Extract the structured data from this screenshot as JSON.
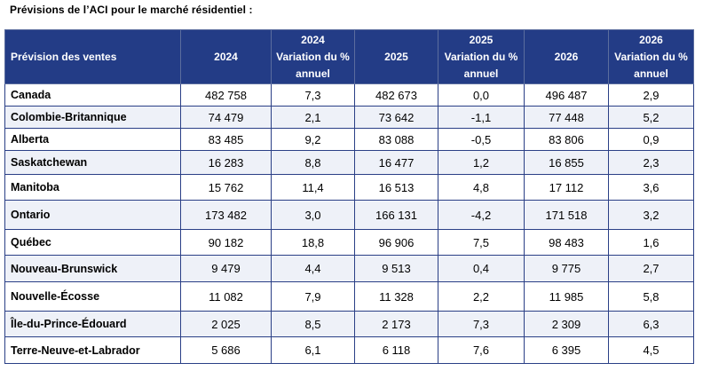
{
  "caption": "Prévisions de l’ACI pour le marché résidentiel :",
  "headers": {
    "province": "Prévision des ventes",
    "y2024": "2024",
    "var2024_l1": "2024",
    "var2024_l2": "Variation du %",
    "var2024_l3": "annuel",
    "y2025": "2025",
    "var2025_l1": "2025",
    "var2025_l2": "Variation du %",
    "var2025_l3": "annuel",
    "y2026": "2026",
    "var2026_l1": "2026",
    "var2026_l2": "Variation du %",
    "var2026_l3": "annuel"
  },
  "rows": [
    [
      "Canada",
      "482 758",
      "7,3",
      "482 673",
      "0,0",
      "496 487",
      "2,9"
    ],
    [
      "Colombie-Britannique",
      "74 479",
      "2,1",
      "73 642",
      "-1,1",
      "77 448",
      "5,2"
    ],
    [
      "Alberta",
      "83 485",
      "9,2",
      "83 088",
      "-0,5",
      "83 806",
      "0,9"
    ],
    [
      "Saskatchewan",
      "16 283",
      "8,8",
      "16 477",
      "1,2",
      "16 855",
      "2,3"
    ],
    [
      "Manitoba",
      "15 762",
      "11,4",
      "16 513",
      "4,8",
      "17 112",
      "3,6"
    ],
    [
      "Ontario",
      "173 482",
      "3,0",
      "166 131",
      "-4,2",
      "171 518",
      "3,2"
    ],
    [
      "Québec",
      "90 182",
      "18,8",
      "96 906",
      "7,5",
      "98 483",
      "1,6"
    ],
    [
      "Nouveau-Brunswick",
      "9 479",
      "4,4",
      "9 513",
      "0,4",
      "9 775",
      "2,7"
    ],
    [
      "Nouvelle-Écosse",
      "11 082",
      "7,9",
      "11 328",
      "2,2",
      "11 985",
      "5,8"
    ],
    [
      "Île-du-Prince-Édouard",
      "2 025",
      "8,5",
      "2 173",
      "7,3",
      "2 309",
      "6,3"
    ],
    [
      "Terre-Neuve-et-Labrador",
      "5 686",
      "6,1",
      "6 118",
      "7,6",
      "6 395",
      "4,5"
    ]
  ]
}
